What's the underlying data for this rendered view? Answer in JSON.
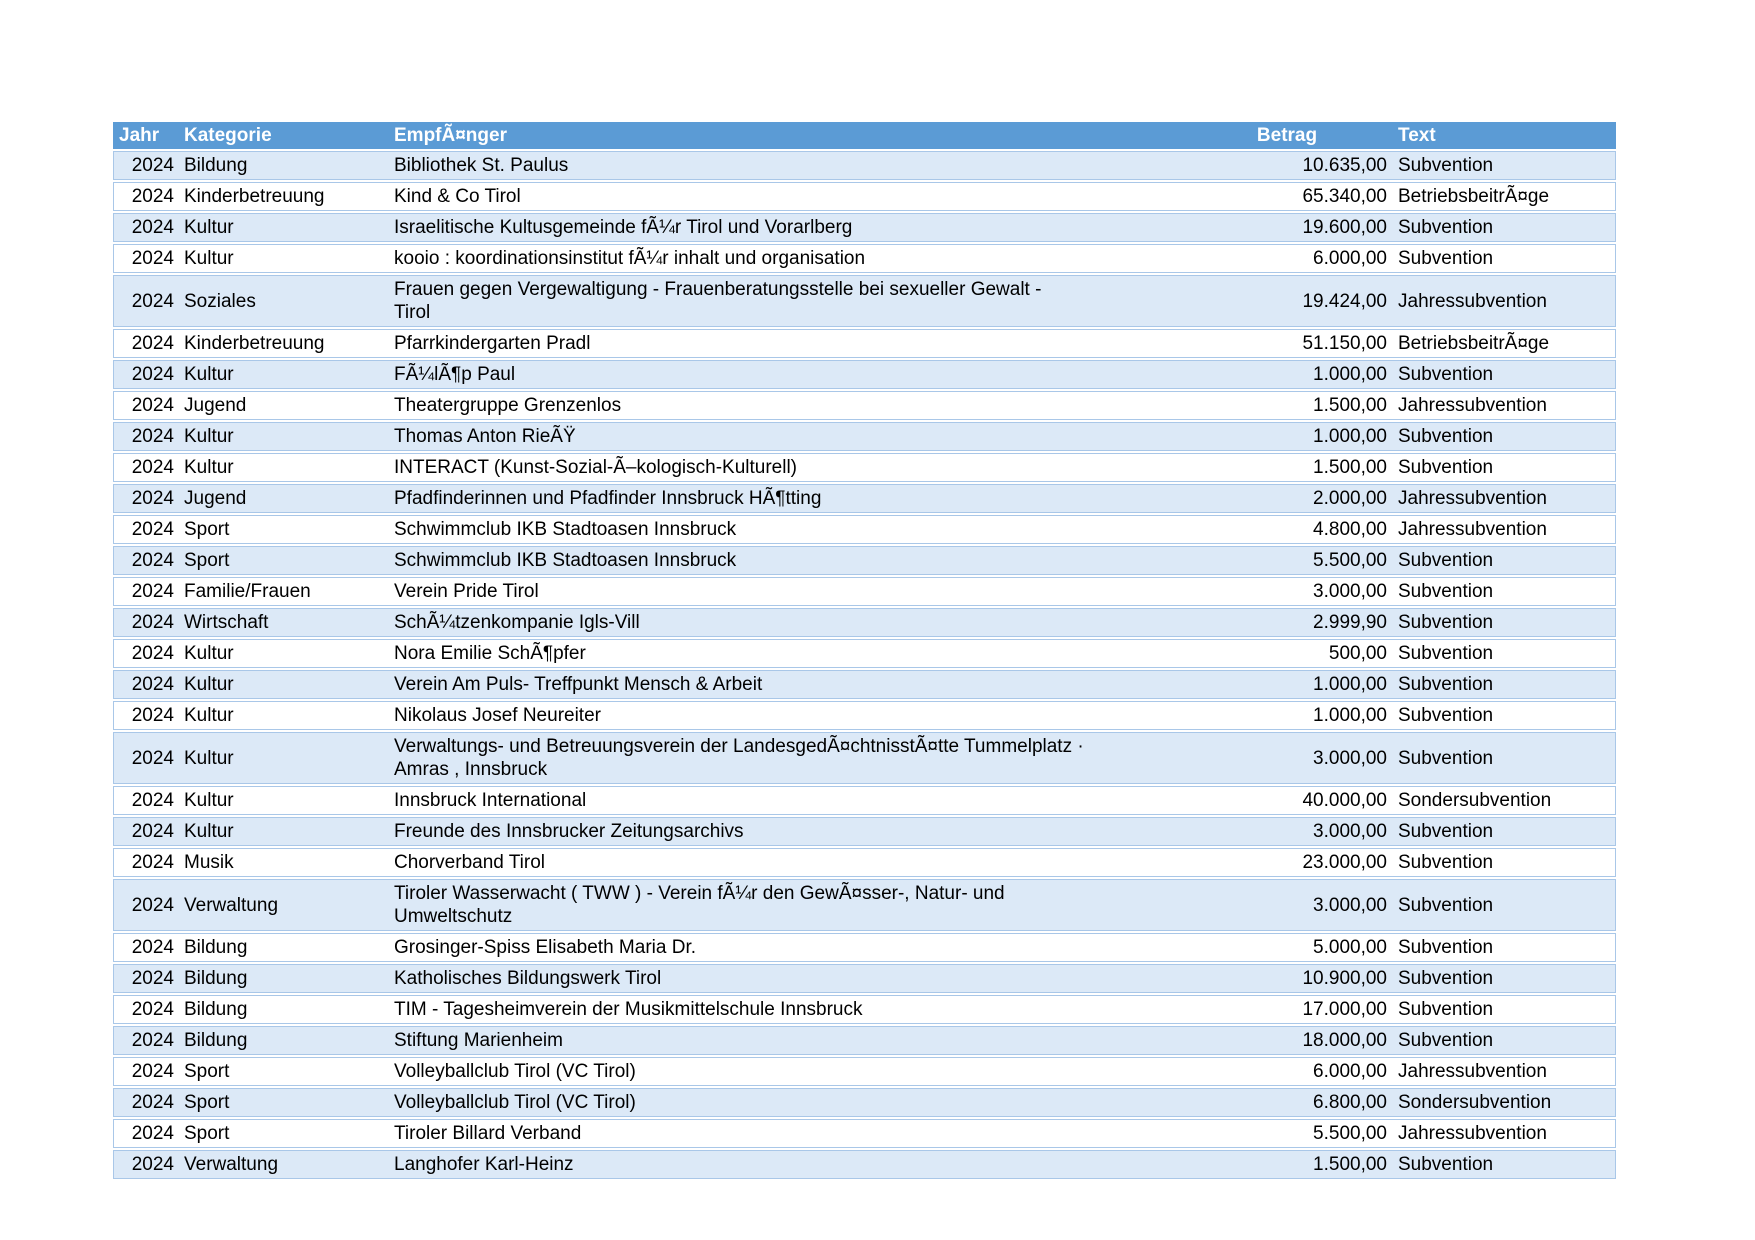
{
  "table": {
    "columns": [
      "Jahr",
      "Kategorie",
      "EmpfÃ¤nger",
      "Betrag",
      "Text"
    ],
    "rows": [
      {
        "jahr": "2024",
        "kategorie": "Bildung",
        "empfaenger": "Bibliothek St. Paulus",
        "betrag": "10.635,00",
        "text": "Subvention"
      },
      {
        "jahr": "2024",
        "kategorie": "Kinderbetreuung",
        "empfaenger": "Kind & Co Tirol",
        "betrag": "65.340,00",
        "text": "BetriebsbeitrÃ¤ge"
      },
      {
        "jahr": "2024",
        "kategorie": "Kultur",
        "empfaenger": "Israelitische Kultusgemeinde fÃ¼r Tirol und Vorarlberg",
        "betrag": "19.600,00",
        "text": "Subvention"
      },
      {
        "jahr": "2024",
        "kategorie": "Kultur",
        "empfaenger": "kooio : koordinationsinstitut fÃ¼r inhalt und organisation",
        "betrag": "6.000,00",
        "text": "Subvention"
      },
      {
        "jahr": "2024",
        "kategorie": "Soziales",
        "empfaenger": "Frauen gegen Vergewaltigung - Frauenberatungsstelle bei sexueller Gewalt -\nTirol",
        "betrag": "19.424,00",
        "text": "Jahressubvention"
      },
      {
        "jahr": "2024",
        "kategorie": "Kinderbetreuung",
        "empfaenger": "Pfarrkindergarten Pradl",
        "betrag": "51.150,00",
        "text": "BetriebsbeitrÃ¤ge"
      },
      {
        "jahr": "2024",
        "kategorie": "Kultur",
        "empfaenger": "FÃ¼lÃ¶p Paul",
        "betrag": "1.000,00",
        "text": "Subvention"
      },
      {
        "jahr": "2024",
        "kategorie": "Jugend",
        "empfaenger": "Theatergruppe Grenzenlos",
        "betrag": "1.500,00",
        "text": "Jahressubvention"
      },
      {
        "jahr": "2024",
        "kategorie": "Kultur",
        "empfaenger": "Thomas Anton RieÃŸ",
        "betrag": "1.000,00",
        "text": "Subvention"
      },
      {
        "jahr": "2024",
        "kategorie": "Kultur",
        "empfaenger": "INTERACT (Kunst-Sozial-Ã–kologisch-Kulturell)",
        "betrag": "1.500,00",
        "text": "Subvention"
      },
      {
        "jahr": "2024",
        "kategorie": "Jugend",
        "empfaenger": "Pfadfinderinnen und Pfadfinder Innsbruck HÃ¶tting",
        "betrag": "2.000,00",
        "text": "Jahressubvention"
      },
      {
        "jahr": "2024",
        "kategorie": "Sport",
        "empfaenger": "Schwimmclub IKB Stadtoasen Innsbruck",
        "betrag": "4.800,00",
        "text": "Jahressubvention"
      },
      {
        "jahr": "2024",
        "kategorie": "Sport",
        "empfaenger": "Schwimmclub IKB Stadtoasen Innsbruck",
        "betrag": "5.500,00",
        "text": "Subvention"
      },
      {
        "jahr": "2024",
        "kategorie": "Familie/Frauen",
        "empfaenger": "Verein Pride Tirol",
        "betrag": "3.000,00",
        "text": "Subvention"
      },
      {
        "jahr": "2024",
        "kategorie": "Wirtschaft",
        "empfaenger": "SchÃ¼tzenkompanie Igls-Vill",
        "betrag": "2.999,90",
        "text": "Subvention"
      },
      {
        "jahr": "2024",
        "kategorie": "Kultur",
        "empfaenger": "Nora Emilie SchÃ¶pfer",
        "betrag": "500,00",
        "text": "Subvention"
      },
      {
        "jahr": "2024",
        "kategorie": "Kultur",
        "empfaenger": "Verein Am Puls- Treffpunkt Mensch & Arbeit",
        "betrag": "1.000,00",
        "text": "Subvention"
      },
      {
        "jahr": "2024",
        "kategorie": "Kultur",
        "empfaenger": "Nikolaus Josef Neureiter",
        "betrag": "1.000,00",
        "text": "Subvention"
      },
      {
        "jahr": "2024",
        "kategorie": "Kultur",
        "empfaenger": "Verwaltungs- und Betreuungsverein der LandesgedÃ¤chtnisstÃ¤tte Tummelplatz ·\nAmras , Innsbruck",
        "betrag": "3.000,00",
        "text": "Subvention"
      },
      {
        "jahr": "2024",
        "kategorie": "Kultur",
        "empfaenger": "Innsbruck International",
        "betrag": "40.000,00",
        "text": "Sondersubvention"
      },
      {
        "jahr": "2024",
        "kategorie": "Kultur",
        "empfaenger": "Freunde des Innsbrucker Zeitungsarchivs",
        "betrag": "3.000,00",
        "text": "Subvention"
      },
      {
        "jahr": "2024",
        "kategorie": "Musik",
        "empfaenger": "Chorverband Tirol",
        "betrag": "23.000,00",
        "text": "Subvention"
      },
      {
        "jahr": "2024",
        "kategorie": "Verwaltung",
        "empfaenger": "Tiroler Wasserwacht ( TWW ) - Verein fÃ¼r den GewÃ¤sser-, Natur- und\nUmweltschutz",
        "betrag": "3.000,00",
        "text": "Subvention"
      },
      {
        "jahr": "2024",
        "kategorie": "Bildung",
        "empfaenger": "Grosinger-Spiss Elisabeth Maria Dr.",
        "betrag": "5.000,00",
        "text": "Subvention"
      },
      {
        "jahr": "2024",
        "kategorie": "Bildung",
        "empfaenger": "Katholisches Bildungswerk Tirol",
        "betrag": "10.900,00",
        "text": "Subvention"
      },
      {
        "jahr": "2024",
        "kategorie": "Bildung",
        "empfaenger": "TIM - Tagesheimverein der Musikmittelschule Innsbruck",
        "betrag": "17.000,00",
        "text": "Subvention"
      },
      {
        "jahr": "2024",
        "kategorie": "Bildung",
        "empfaenger": "Stiftung Marienheim",
        "betrag": "18.000,00",
        "text": "Subvention"
      },
      {
        "jahr": "2024",
        "kategorie": "Sport",
        "empfaenger": "Volleyballclub Tirol (VC Tirol)",
        "betrag": "6.000,00",
        "text": "Jahressubvention"
      },
      {
        "jahr": "2024",
        "kategorie": "Sport",
        "empfaenger": "Volleyballclub Tirol (VC Tirol)",
        "betrag": "6.800,00",
        "text": "Sondersubvention"
      },
      {
        "jahr": "2024",
        "kategorie": "Sport",
        "empfaenger": "Tiroler Billard Verband",
        "betrag": "5.500,00",
        "text": "Jahressubvention"
      },
      {
        "jahr": "2024",
        "kategorie": "Verwaltung",
        "empfaenger": "Langhofer Karl-Heinz",
        "betrag": "1.500,00",
        "text": "Subvention"
      }
    ]
  },
  "colors": {
    "header_bg": "#5B9BD5",
    "band_bg": "#DCE9F7",
    "line": "#A9C7E8",
    "header_text": "#FFFFFF",
    "body_text": "#000000"
  }
}
